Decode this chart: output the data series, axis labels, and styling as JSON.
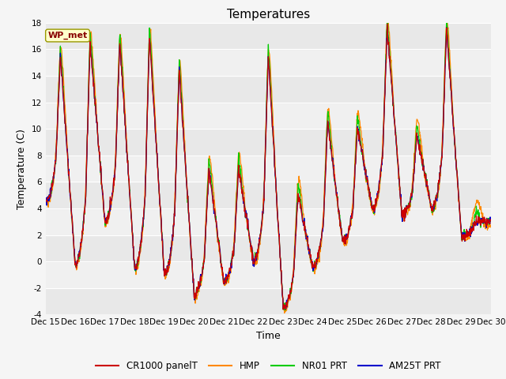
{
  "title": "Temperatures",
  "ylabel": "Temperature (C)",
  "xlabel": "Time",
  "ylim": [
    -4,
    18
  ],
  "yticks": [
    -4,
    -2,
    0,
    2,
    4,
    6,
    8,
    10,
    12,
    14,
    16,
    18
  ],
  "xtick_labels": [
    "Dec 15",
    "Dec 16",
    "Dec 17",
    "Dec 18",
    "Dec 19",
    "Dec 20",
    "Dec 21",
    "Dec 22",
    "Dec 23",
    "Dec 24",
    "Dec 25",
    "Dec 26",
    "Dec 27",
    "Dec 28",
    "Dec 29",
    "Dec 30"
  ],
  "colors": {
    "CR1000": "#cc0000",
    "HMP": "#ff8800",
    "NR01": "#00cc00",
    "AM25T": "#0000cc"
  },
  "legend_labels": [
    "CR1000 panelT",
    "HMP",
    "NR01 PRT",
    "AM25T PRT"
  ],
  "wp_met_box_color": "#ffffcc",
  "wp_met_text_color": "#880000",
  "title_fontsize": 11,
  "label_fontsize": 9,
  "tick_fontsize": 7.5
}
